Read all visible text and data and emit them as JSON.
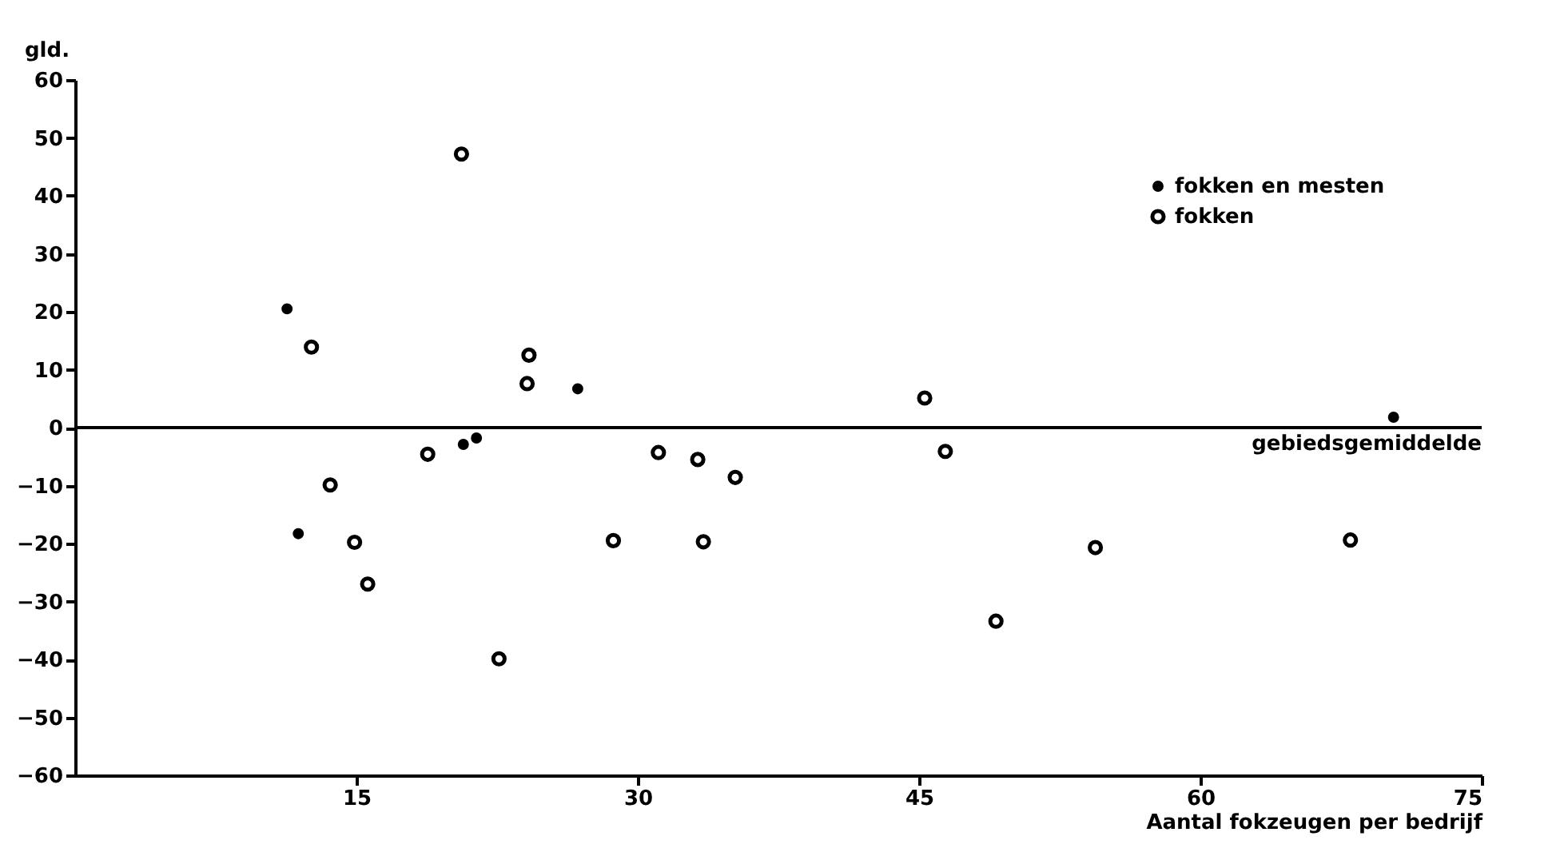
{
  "chart_data": {
    "type": "scatter",
    "xlabel": "Aantal fokzeugen per bedrijf",
    "ylabel": "gld.",
    "xlim": [
      0,
      75
    ],
    "xticks": [
      15,
      30,
      45,
      60,
      75
    ],
    "ylim": [
      -60,
      60
    ],
    "yticks": [
      -60,
      -50,
      -40,
      -30,
      -20,
      -10,
      0,
      10,
      20,
      30,
      40,
      50,
      60
    ],
    "grid": false,
    "legend": "top right",
    "marker": "circle",
    "ref_lines": [
      {
        "axis": "y",
        "value": 0,
        "label": "gebiedsgemiddelde",
        "color": "#000000"
      }
    ],
    "series": [
      {
        "name": "fokken en mesten",
        "color": "#000000",
        "x": [
          11.3,
          26.8,
          20.7,
          21.4,
          11.9,
          70.3
        ],
        "values": [
          20.5,
          6.7,
          -2.9,
          -1.8,
          -18.3,
          1.8
        ]
      },
      {
        "name": "fokken",
        "color": "#000000",
        "x": [
          12.6,
          20.6,
          24.2,
          24.1,
          18.8,
          13.6,
          14.9,
          15.6,
          22.6,
          28.7,
          31.1,
          33.2,
          33.5,
          35.2,
          45.3,
          46.4,
          49.1,
          54.4,
          68.0
        ],
        "values": [
          13.9,
          47.2,
          12.5,
          7.6,
          -4.6,
          -9.9,
          -19.8,
          -27.0,
          -39.9,
          -19.5,
          -4.3,
          -5.5,
          -19.7,
          -8.6,
          5.1,
          -4.1,
          -33.4,
          -20.7,
          -19.4
        ]
      }
    ]
  }
}
